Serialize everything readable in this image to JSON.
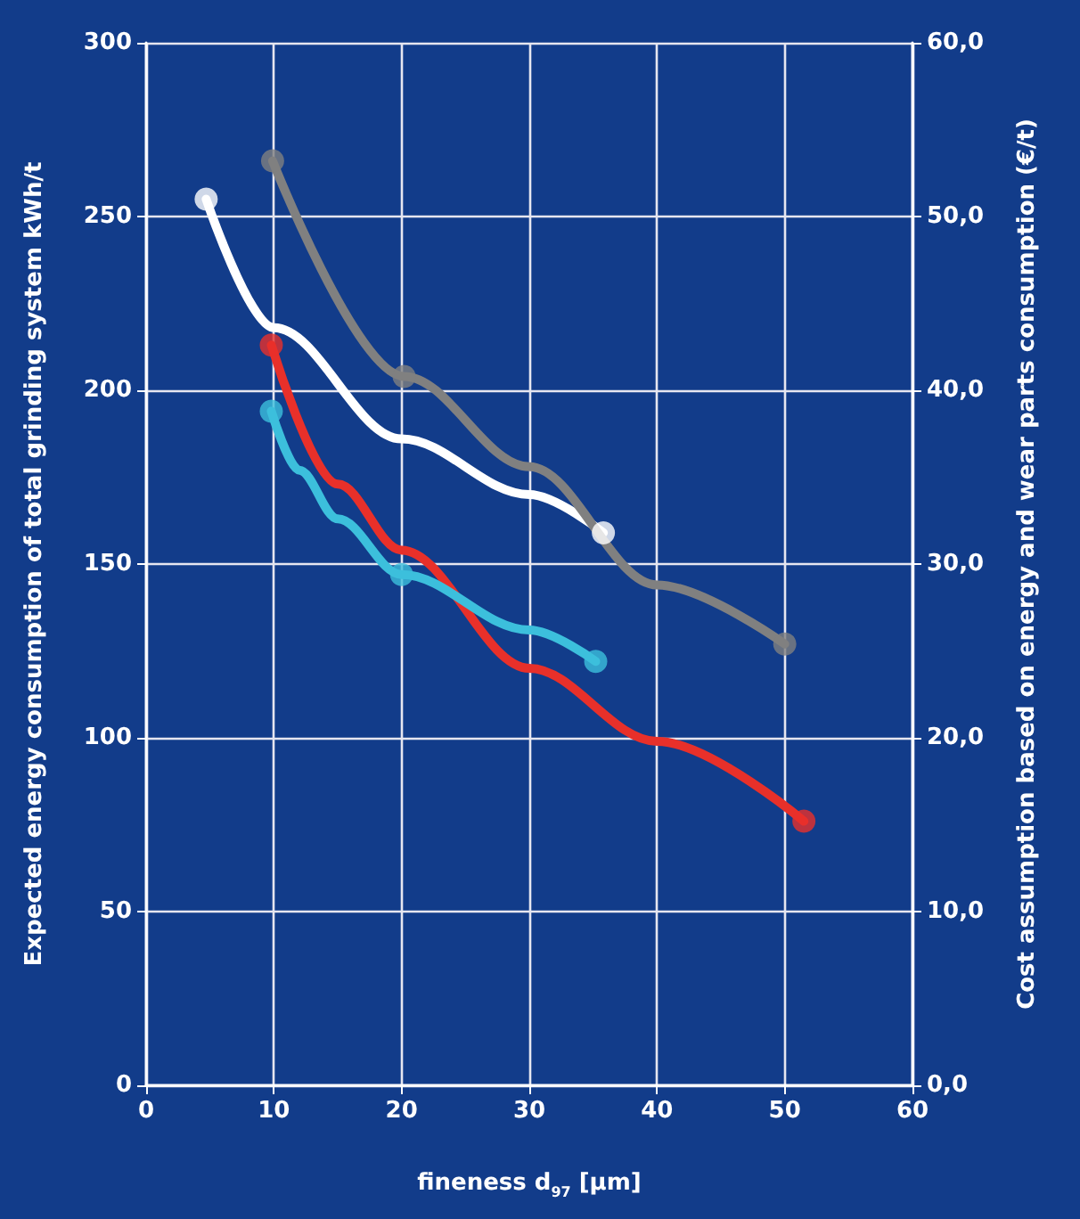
{
  "chart_data": {
    "type": "line",
    "xlabel": "fineness d$_{97}$ [µm]",
    "ylabel": "Expected energy consumption of total grinding system kWh/t",
    "y2label": "Cost assumption based on energy and wear parts consumption (€/t)",
    "xlim": [
      0,
      60
    ],
    "xticks": [
      0,
      10,
      20,
      30,
      40,
      50,
      60
    ],
    "ylim": [
      0,
      300
    ],
    "yticks": [
      0,
      50,
      100,
      150,
      200,
      250,
      300
    ],
    "y2lim": [
      0,
      60
    ],
    "y2ticks": [
      {
        "value": 0,
        "label": "0,0"
      },
      {
        "value": 10,
        "label": "10,0"
      },
      {
        "value": 20,
        "label": "20,0"
      },
      {
        "value": 30,
        "label": "30,0"
      },
      {
        "value": 40,
        "label": "40,0"
      },
      {
        "value": 50,
        "label": "50,0"
      },
      {
        "value": 60,
        "label": "60,0"
      }
    ],
    "grid": true,
    "marker": "circle",
    "line_style": "solid",
    "series": [
      {
        "type": "line",
        "marker": "none",
        "color": "#ffffff",
        "x": [
          4.7,
          10,
          20,
          30,
          35.8
        ],
        "values": [
          255,
          218,
          186,
          170,
          159
        ]
      },
      {
        "type": "line",
        "marker": "none",
        "color": "#808080",
        "x": [
          9.9,
          20.2,
          30,
          40,
          50
        ],
        "values": [
          266,
          204,
          178,
          144,
          127
        ]
      },
      {
        "type": "line",
        "marker": "none",
        "color": "#e8302a",
        "x": [
          9.8,
          15,
          20,
          30,
          40,
          51.5
        ],
        "values": [
          213,
          173,
          154,
          120,
          99,
          76
        ]
      },
      {
        "type": "line",
        "marker": "none",
        "color": "#3cbfdc",
        "x": [
          9.8,
          12,
          15,
          20,
          30,
          35.2
        ],
        "values": [
          194,
          177,
          163,
          147,
          131,
          122
        ]
      },
      {
        "type": "scatter",
        "color": "#ffffff",
        "x": [
          4.7,
          35.8
        ],
        "values": [
          255,
          159
        ]
      },
      {
        "type": "scatter",
        "color": "#808080",
        "x": [
          9.9,
          20.2,
          50
        ],
        "values": [
          266,
          204,
          127
        ]
      },
      {
        "type": "scatter",
        "color": "#e8302a",
        "x": [
          9.8,
          51.5
        ],
        "values": [
          213,
          76
        ]
      },
      {
        "type": "scatter",
        "color": "#3cbfdc",
        "x": [
          9.8,
          20,
          35.2
        ],
        "values": [
          194,
          147,
          122
        ]
      }
    ]
  }
}
